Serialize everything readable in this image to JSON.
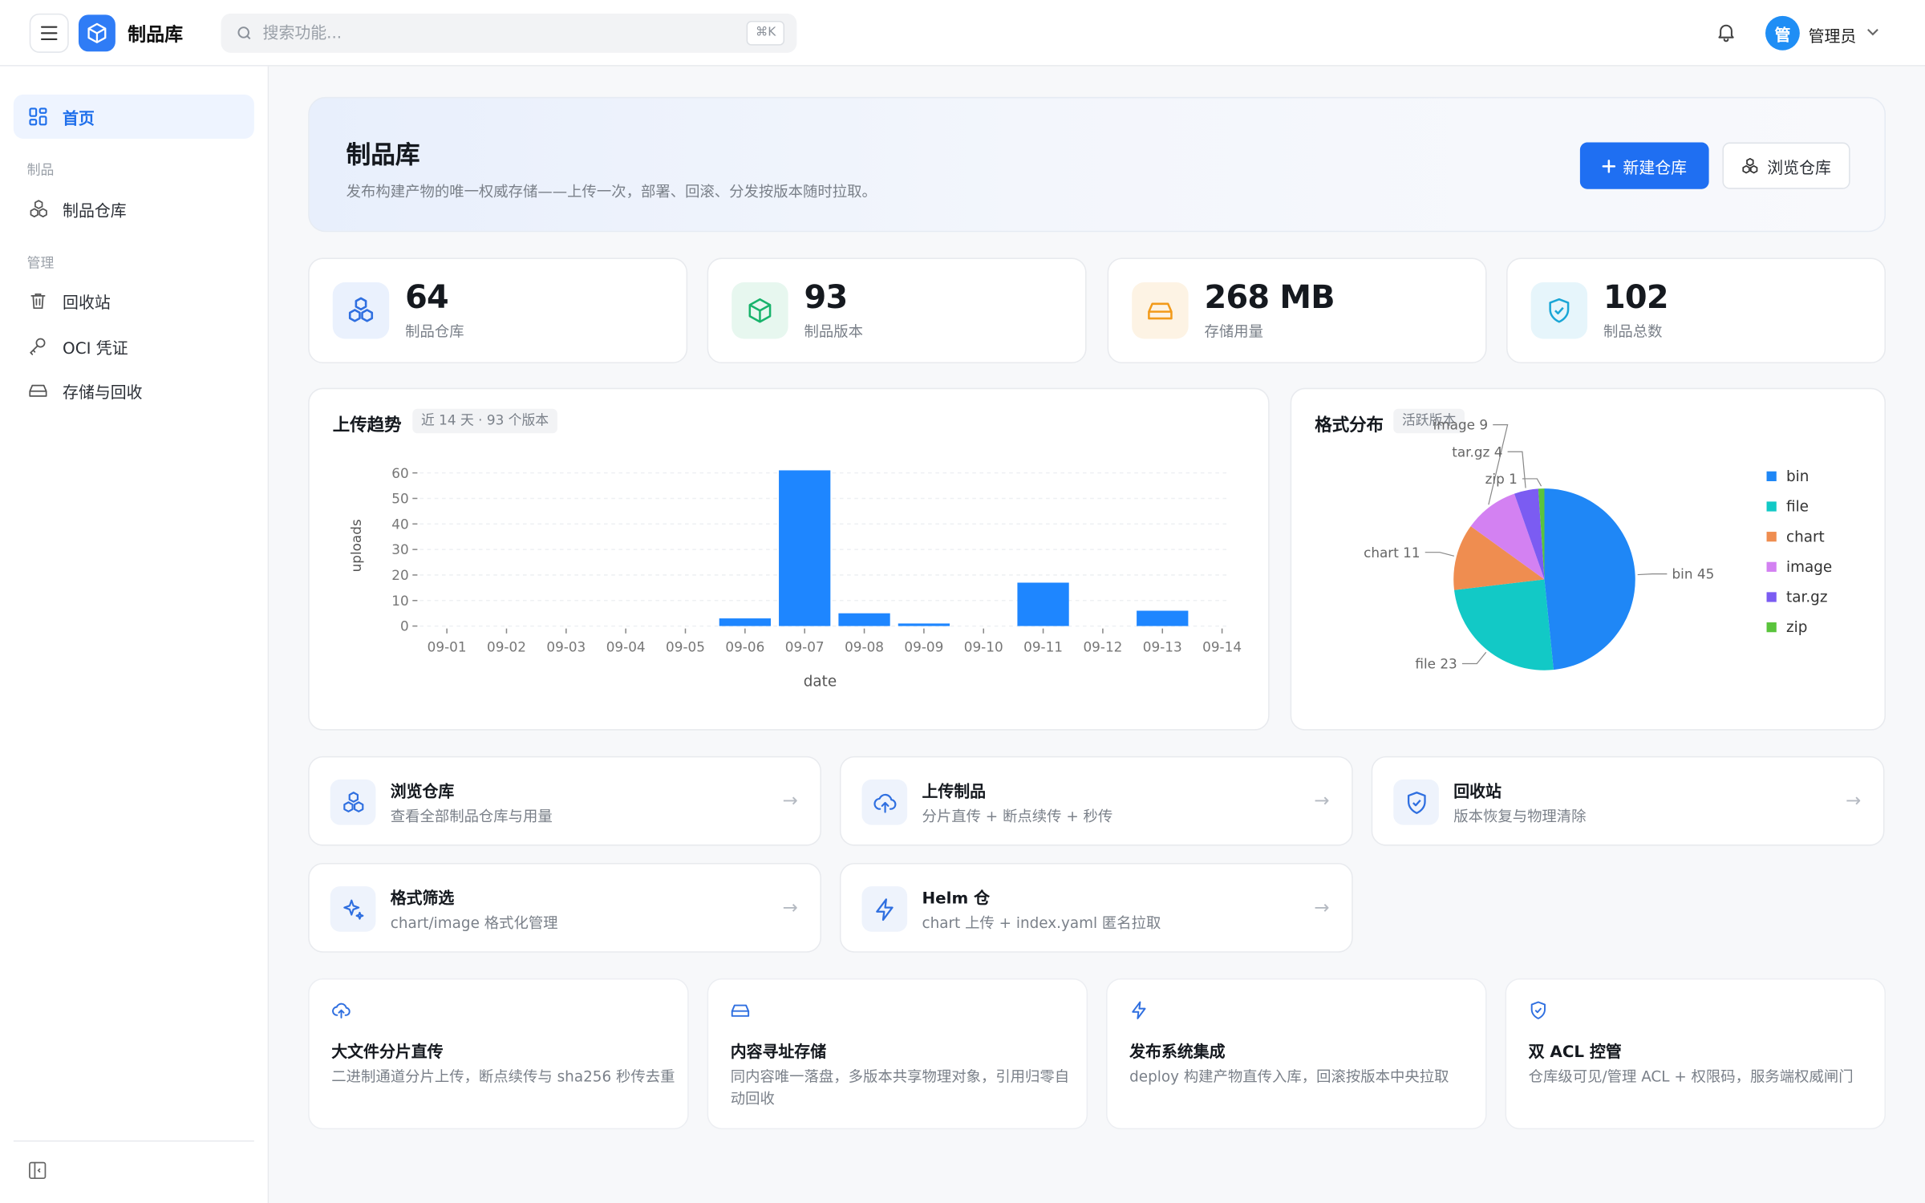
{
  "app": {
    "title": "制品库"
  },
  "search": {
    "placeholder": "搜索功能...",
    "shortcut": "⌘K"
  },
  "user": {
    "avatar_text": "管",
    "name": "管理员"
  },
  "sidebar": {
    "home": "首页",
    "groups": [
      {
        "label": "制品",
        "items": [
          {
            "label": "制品仓库",
            "icon": "cubes-icon"
          }
        ]
      },
      {
        "label": "管理",
        "items": [
          {
            "label": "回收站",
            "icon": "trash-icon"
          },
          {
            "label": "OCI 凭证",
            "icon": "key-icon"
          },
          {
            "label": "存储与回收",
            "icon": "drive-icon"
          }
        ]
      }
    ]
  },
  "hero": {
    "title": "制品库",
    "subtitle": "发布构建产物的唯一权威存储——上传一次，部署、回滚、分发按版本随时拉取。",
    "new_repo": "新建仓库",
    "browse_repo": "浏览仓库"
  },
  "stats": [
    {
      "value": "64",
      "label": "制品仓库",
      "color": "#2f6fe0",
      "bg": "#eaf1fd",
      "icon": "cubes-icon"
    },
    {
      "value": "93",
      "label": "制品版本",
      "color": "#18b36b",
      "bg": "#e7f7ef",
      "icon": "package-icon"
    },
    {
      "value": "268 MB",
      "label": "存储用量",
      "color": "#f29a1a",
      "bg": "#fdf3e4",
      "icon": "drive-icon"
    },
    {
      "value": "102",
      "label": "制品总数",
      "color": "#1aa6d6",
      "bg": "#e6f5fb",
      "icon": "shield-icon"
    }
  ],
  "upload_trend": {
    "title": "上传趋势",
    "tag": "近 14 天 · 93 个版本"
  },
  "format_dist": {
    "title": "格式分布",
    "tag": "活跃版本"
  },
  "chart_data": [
    {
      "type": "bar",
      "title": "上传趋势",
      "xlabel": "date",
      "ylabel": "uploads",
      "categories": [
        "09-01",
        "09-02",
        "09-03",
        "09-04",
        "09-05",
        "09-06",
        "09-07",
        "09-08",
        "09-09",
        "09-10",
        "09-11",
        "09-12",
        "09-13",
        "09-14"
      ],
      "values": [
        0,
        0,
        0,
        0,
        0,
        3,
        61,
        5,
        1,
        0,
        17,
        0,
        6,
        0
      ],
      "yticks": [
        0,
        10,
        20,
        30,
        40,
        50,
        60
      ],
      "ylim": [
        0,
        63
      ],
      "grid": true,
      "color": "#1e86ff"
    },
    {
      "type": "pie",
      "title": "格式分布",
      "labels": [
        "bin",
        "file",
        "chart",
        "image",
        "tar.gz",
        "zip"
      ],
      "values": [
        45,
        23,
        11,
        9,
        4,
        1
      ],
      "colors": [
        "#1f87f6",
        "#12c9c6",
        "#ef8d50",
        "#d381f2",
        "#7b5cf2",
        "#5ac43c"
      ],
      "legend": "right"
    }
  ],
  "actions": [
    {
      "title": "浏览仓库",
      "desc": "查看全部制品仓库与用量",
      "icon": "cubes-icon"
    },
    {
      "title": "上传制品",
      "desc": "分片直传 + 断点续传 + 秒传",
      "icon": "cloud-upload-icon"
    },
    {
      "title": "回收站",
      "desc": "版本恢复与物理清除",
      "icon": "shield-icon"
    },
    {
      "title": "格式筛选",
      "desc": "chart/image 格式化管理",
      "icon": "sparkle-icon"
    },
    {
      "title": "Helm 仓",
      "desc": "chart 上传 + index.yaml 匿名拉取",
      "icon": "bolt-icon"
    }
  ],
  "arrow": "→",
  "features": [
    {
      "title": "大文件分片直传",
      "desc": "二进制通道分片上传，断点续传与 sha256 秒传去重",
      "icon": "cloud-upload-icon"
    },
    {
      "title": "内容寻址存储",
      "desc": "同内容唯一落盘，多版本共享物理对象，引用归零自动回收",
      "icon": "drive-icon"
    },
    {
      "title": "发布系统集成",
      "desc": "deploy 构建产物直传入库，回滚按版本中央拉取",
      "icon": "bolt-icon"
    },
    {
      "title": "双 ACL 控管",
      "desc": "仓库级可见/管理 ACL + 权限码，服务端权威闸门",
      "icon": "shield-icon"
    }
  ]
}
